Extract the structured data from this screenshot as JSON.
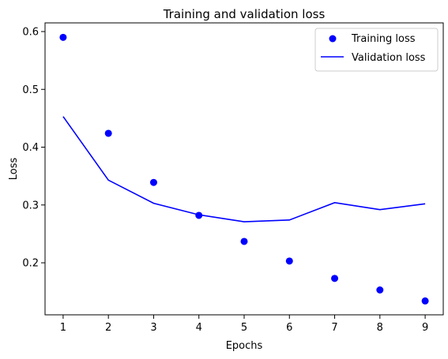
{
  "chart_data": {
    "type": "line",
    "title": "Training and validation loss",
    "xlabel": "Epochs",
    "ylabel": "Loss",
    "x": [
      1,
      2,
      3,
      4,
      5,
      6,
      7,
      8,
      9
    ],
    "xlim": [
      0.6,
      9.4
    ],
    "ylim": [
      0.11,
      0.615
    ],
    "xticks": [
      "1",
      "2",
      "3",
      "4",
      "5",
      "6",
      "7",
      "8",
      "9"
    ],
    "yticks": [
      "0.2",
      "0.3",
      "0.4",
      "0.5",
      "0.6"
    ],
    "ytick_values": [
      0.2,
      0.3,
      0.4,
      0.5,
      0.6
    ],
    "grid": false,
    "legend_position": "top-right",
    "series": [
      {
        "name": "Training loss",
        "style": "points",
        "color": "#0000ff",
        "values": [
          0.59,
          0.424,
          0.339,
          0.282,
          0.237,
          0.203,
          0.173,
          0.153,
          0.134
        ]
      },
      {
        "name": "Validation loss",
        "style": "line",
        "color": "#0000ff",
        "values": [
          0.453,
          0.343,
          0.303,
          0.283,
          0.271,
          0.274,
          0.304,
          0.292,
          0.302
        ]
      }
    ]
  }
}
